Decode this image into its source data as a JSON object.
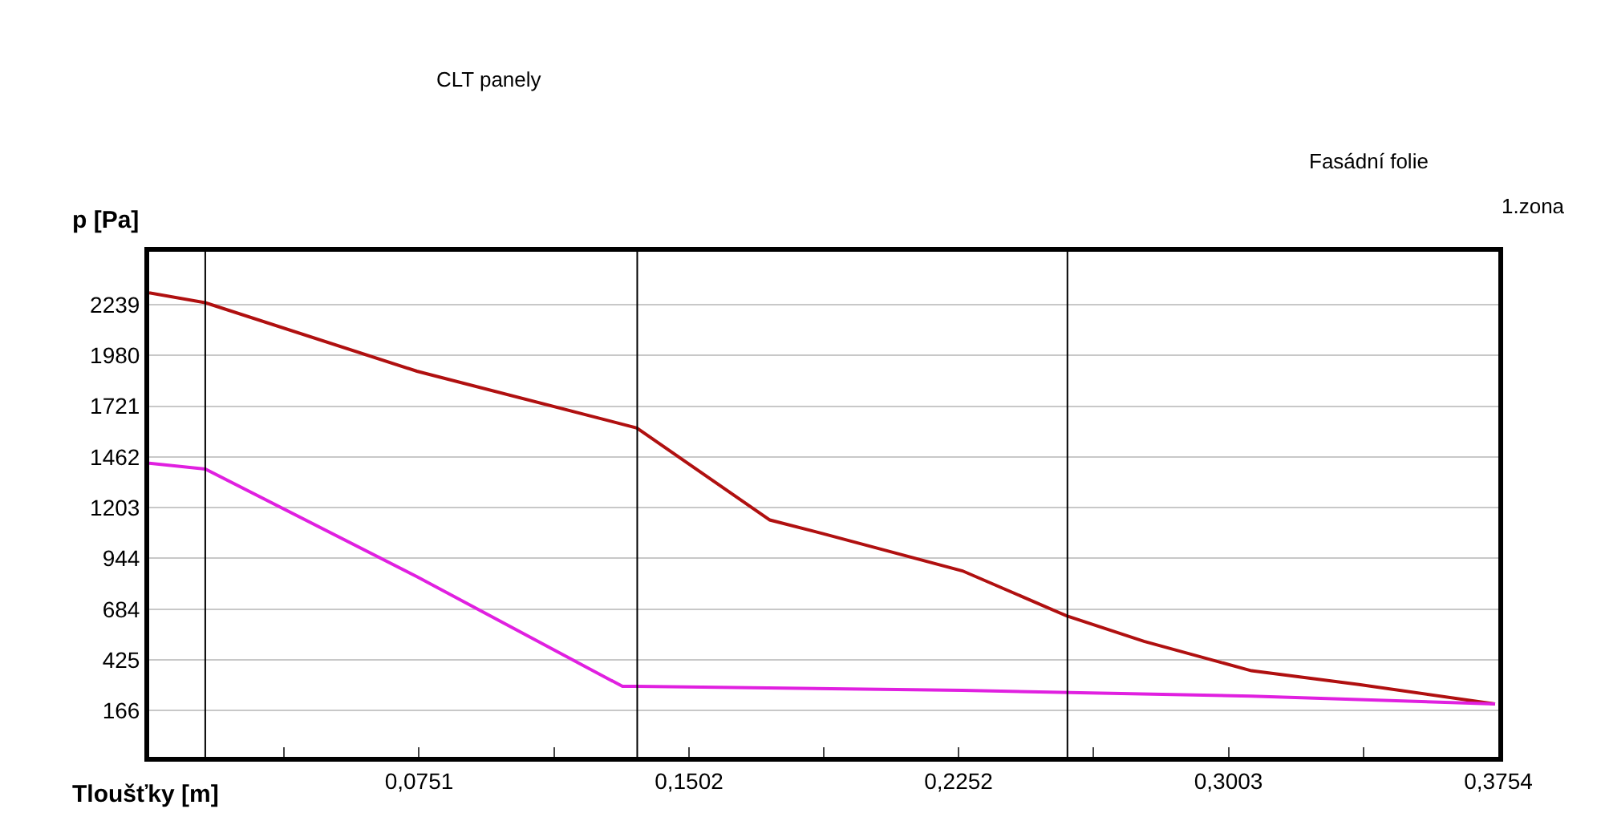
{
  "chart_data": {
    "type": "line",
    "xlabel": "Tloušťky [m]",
    "ylabel": "p [Pa]",
    "x": [
      0,
      0.0156,
      0.0745,
      0.1357,
      0.1727,
      0.1875,
      0.2263,
      0.2553,
      0.2768,
      0.3067,
      0.3366,
      0.3745
    ],
    "series": [
      {
        "color": "#b01010",
        "values": [
          2300,
          2250,
          1900,
          1610,
          1140,
          1070,
          880,
          650,
          520,
          370,
          300,
          200
        ]
      },
      {
        "color": "#e020e0",
        "x": [
          0,
          0.0156,
          0.0745,
          0.1317,
          0.1357,
          0.2263,
          0.3067,
          0.3745
        ],
        "values": [
          1430,
          1400,
          850,
          290,
          290,
          270,
          240,
          200
        ]
      }
    ],
    "xlim": [
      0,
      0.3754
    ],
    "xticks": [
      {
        "value": 0.0376,
        "label": null
      },
      {
        "value": 0.0751,
        "label": "0,0751"
      },
      {
        "value": 0.1127,
        "label": null
      },
      {
        "value": 0.1502,
        "label": "0,1502"
      },
      {
        "value": 0.1877,
        "label": null
      },
      {
        "value": 0.2252,
        "label": "0,2252"
      },
      {
        "value": 0.2628,
        "label": null
      },
      {
        "value": 0.3003,
        "label": "0,3003"
      },
      {
        "value": 0.3379,
        "label": null
      },
      {
        "value": 0.3754,
        "label": "0,3754"
      }
    ],
    "ylim": [
      -70,
      2510
    ],
    "yticks": [
      166,
      425,
      684,
      944,
      1203,
      1462,
      1721,
      1980,
      2239
    ],
    "grid": "y",
    "ref_lines": [
      {
        "axis": "x",
        "value": 0.0156,
        "color": "#000000"
      },
      {
        "axis": "x",
        "value": 0.1358,
        "color": "#000000"
      },
      {
        "axis": "x",
        "value": 0.2555,
        "color": "#000000"
      }
    ],
    "annotations": [
      "CLT panely",
      "Fasádní folie",
      "1.zona"
    ],
    "marker": "none",
    "line_style": "solid"
  }
}
